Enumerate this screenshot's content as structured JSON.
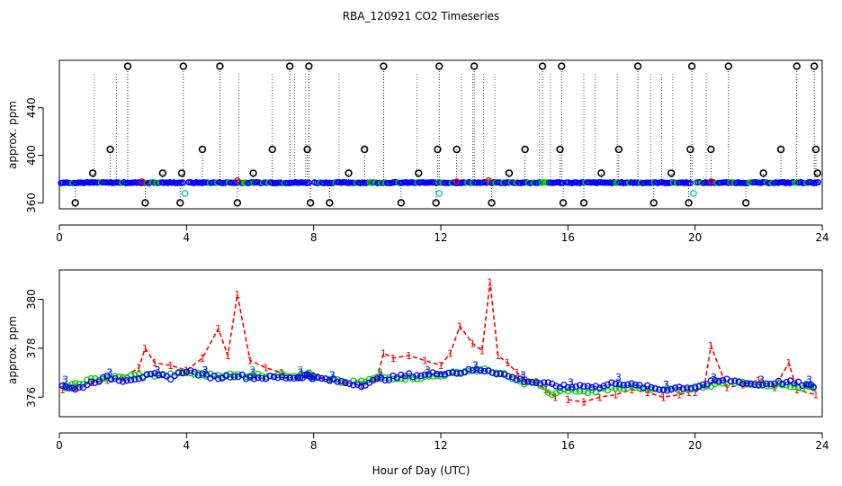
{
  "figure": {
    "title": "RBA_120921  CO2 Timeseries",
    "xlabel": "Hour of Day (UTC)"
  },
  "colors": {
    "series1": "#ff0000",
    "series2": "#00cc00",
    "series3": "#0000ff",
    "cyan": "#00cccc",
    "black": "#000000"
  },
  "chart_data": [
    {
      "type": "scatter",
      "title": "",
      "xlabel": "",
      "ylabel": "approx. ppm",
      "xlim": [
        0,
        24
      ],
      "ylim": [
        355,
        480
      ],
      "xticks": [
        0,
        4,
        8,
        12,
        16,
        20,
        24
      ],
      "yticks": [
        360,
        400,
        440
      ],
      "grid": false,
      "baseline_ppm": 377,
      "series": [
        {
          "name": "1",
          "marker": "o",
          "color": "#ff0000",
          "description": "baseline near 377 ppm, small bumps near hours 5.6 and 13.5"
        },
        {
          "name": "3",
          "marker": "o",
          "color": "#0000ff",
          "description": "baseline near 377 ppm"
        },
        {
          "name": "low flags",
          "marker": "o",
          "color": "#00cccc",
          "x": [
            3.95,
            11.95,
            19.95
          ],
          "y": [
            368,
            368,
            368
          ]
        }
      ],
      "outliers_black": {
        "x": [
          0.5,
          1.05,
          1.6,
          2.15,
          2.7,
          3.25,
          3.8,
          3.85,
          3.9,
          4.5,
          5.05,
          5.6,
          6.1,
          6.7,
          7.25,
          7.8,
          7.85,
          7.9,
          8.5,
          9.1,
          9.6,
          10.2,
          10.75,
          11.3,
          11.85,
          11.9,
          11.95,
          12.5,
          13.05,
          13.6,
          14.15,
          14.65,
          15.2,
          15.75,
          15.8,
          15.85,
          16.5,
          17.05,
          17.6,
          18.2,
          18.7,
          19.25,
          19.8,
          19.85,
          19.9,
          20.5,
          21.05,
          21.6,
          22.15,
          22.7,
          23.2,
          23.75,
          23.8,
          23.85
        ],
        "y": [
          360,
          385,
          405,
          475,
          360,
          385,
          360,
          385,
          475,
          405,
          475,
          360,
          385,
          405,
          475,
          405,
          475,
          360,
          360,
          385,
          405,
          475,
          360,
          385,
          360,
          405,
          475,
          405,
          475,
          360,
          385,
          405,
          475,
          405,
          475,
          360,
          360,
          385,
          405,
          475,
          360,
          385,
          360,
          405,
          475,
          405,
          475,
          360,
          385,
          405,
          475,
          475,
          405,
          385
        ]
      }
    },
    {
      "type": "line",
      "title": "",
      "xlabel": "Hour of Day (UTC)",
      "ylabel": "approx. ppm",
      "xlim": [
        0,
        24
      ],
      "ylim": [
        375.2,
        381.2
      ],
      "xticks": [
        0,
        4,
        8,
        12,
        16,
        20,
        24
      ],
      "yticks": [
        376,
        378,
        380
      ],
      "grid": false,
      "series": [
        {
          "name": "1",
          "marker": "1",
          "color": "#ff0000",
          "line": "dashed",
          "x": [
            0.1,
            0.5,
            1.0,
            1.5,
            2.0,
            2.5,
            2.7,
            3.0,
            3.5,
            4.0,
            4.5,
            5.0,
            5.3,
            5.6,
            6.0,
            6.5,
            7.0,
            7.5,
            7.8
          ],
          "y": [
            376.3,
            376.4,
            376.6,
            376.7,
            376.8,
            377.2,
            378.0,
            377.4,
            377.3,
            377.1,
            377.6,
            378.8,
            377.7,
            380.2,
            377.5,
            377.2,
            377.0,
            376.8,
            376.9
          ]
        },
        {
          "name": "1",
          "marker": "1",
          "color": "#ff0000",
          "line": "dashed",
          "x": [
            8.0,
            8.5,
            9.0,
            9.5,
            10.0,
            10.2,
            10.5,
            11.0,
            11.5,
            12.0,
            12.3,
            12.6,
            13.0,
            13.3,
            13.55,
            13.8,
            14.1,
            14.4,
            14.7,
            15.0,
            15.3,
            15.6
          ],
          "y": [
            376.9,
            376.7,
            376.6,
            376.5,
            376.8,
            377.8,
            377.6,
            377.7,
            377.5,
            377.3,
            377.8,
            378.9,
            378.2,
            377.9,
            380.7,
            377.7,
            377.4,
            377.0,
            376.7,
            376.6,
            376.3,
            376.0
          ]
        },
        {
          "name": "1",
          "marker": "1",
          "color": "#ff0000",
          "line": "dashed",
          "x": [
            16.0,
            16.5,
            17.0,
            17.5,
            18.0,
            18.5,
            19.0,
            19.5,
            19.8
          ],
          "y": [
            375.9,
            375.8,
            376.0,
            376.1,
            376.3,
            376.2,
            376.0,
            376.1,
            376.2
          ]
        },
        {
          "name": "1",
          "marker": "1",
          "color": "#ff0000",
          "line": "dashed",
          "x": [
            20.0,
            20.3,
            20.5,
            21.0,
            21.5,
            22.0,
            22.5,
            22.95,
            23.2,
            23.8
          ],
          "y": [
            376.2,
            376.5,
            378.1,
            376.4,
            376.5,
            376.7,
            376.4,
            377.4,
            376.3,
            376.1
          ]
        },
        {
          "name": "2",
          "marker": "2",
          "color": "#00cc00",
          "x": [
            0.1,
            0.5,
            1.0,
            1.5,
            2.0,
            2.5,
            3.0,
            3.5,
            4.0,
            4.5,
            5.0,
            5.5,
            6.0,
            6.5,
            7.0,
            7.5,
            7.8,
            8.0,
            8.5,
            9.0,
            9.5,
            10.0,
            10.5,
            11.0,
            11.5,
            12.0,
            12.5,
            13.0,
            13.5,
            14.0,
            14.5,
            15.0,
            15.5,
            16.0,
            16.5,
            17.0,
            17.5,
            18.0,
            18.5,
            19.0,
            19.5,
            20.0,
            20.5,
            21.0,
            21.5,
            22.0,
            22.5,
            23.0,
            23.5,
            23.8
          ],
          "y": [
            376.4,
            376.5,
            376.7,
            376.8,
            376.8,
            376.9,
            376.9,
            376.9,
            377.0,
            376.9,
            376.9,
            376.9,
            376.9,
            376.9,
            376.9,
            376.9,
            377.0,
            376.8,
            376.7,
            376.6,
            376.6,
            376.8,
            376.8,
            376.8,
            376.8,
            376.9,
            377.0,
            377.1,
            377.1,
            376.9,
            376.6,
            376.6,
            376.1,
            376.3,
            376.2,
            376.3,
            376.4,
            376.4,
            376.3,
            376.3,
            376.3,
            376.4,
            376.5,
            376.6,
            376.6,
            376.5,
            376.5,
            376.5,
            376.4,
            376.5
          ]
        },
        {
          "name": "3",
          "marker": "3",
          "color": "#0000ff",
          "x": [
            0.1,
            0.5,
            1.0,
            1.5,
            2.0,
            2.5,
            3.0,
            3.5,
            4.0,
            4.5,
            5.0,
            5.5,
            6.0,
            6.5,
            7.0,
            7.5,
            7.8,
            8.0,
            8.5,
            9.0,
            9.5,
            10.0,
            10.5,
            11.0,
            11.5,
            12.0,
            12.5,
            13.0,
            13.5,
            14.0,
            14.5,
            15.0,
            15.5,
            16.0,
            16.5,
            17.0,
            17.5,
            18.0,
            18.5,
            19.0,
            19.5,
            20.0,
            20.5,
            21.0,
            21.5,
            22.0,
            22.5,
            23.0,
            23.5,
            23.8
          ],
          "y": [
            376.5,
            376.3,
            376.6,
            376.8,
            376.7,
            376.8,
            376.9,
            376.8,
            377.1,
            376.9,
            376.8,
            376.9,
            376.8,
            376.8,
            376.8,
            376.8,
            376.9,
            376.8,
            376.7,
            376.6,
            376.5,
            376.7,
            376.8,
            376.9,
            376.9,
            377.0,
            377.0,
            377.1,
            377.1,
            376.9,
            376.7,
            376.6,
            376.5,
            376.4,
            376.5,
            376.4,
            376.6,
            376.5,
            376.4,
            376.3,
            376.4,
            376.4,
            376.6,
            376.7,
            376.6,
            376.5,
            376.6,
            376.6,
            376.5,
            376.4
          ]
        }
      ]
    }
  ]
}
